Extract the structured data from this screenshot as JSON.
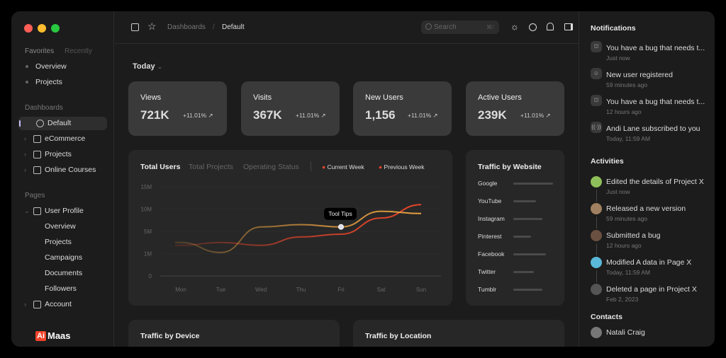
{
  "window": {
    "controls": [
      "#ff5f57",
      "#febc2e",
      "#28c840"
    ]
  },
  "sidebar": {
    "tabs": {
      "favorites": "Favorites",
      "recently": "Recently"
    },
    "favorites": [
      {
        "label": "Overview"
      },
      {
        "label": "Projects"
      }
    ],
    "dashboards_title": "Dashboards",
    "dashboards": [
      {
        "label": "Default",
        "icon": "pie-chart-icon",
        "active": true
      },
      {
        "label": "eCommerce",
        "icon": "shopping-bag-icon"
      },
      {
        "label": "Projects",
        "icon": "folder-icon"
      },
      {
        "label": "Online Courses",
        "icon": "book-icon"
      }
    ],
    "pages_title": "Pages",
    "user_profile": {
      "label": "User Profile",
      "children": [
        "Overview",
        "Projects",
        "Campaigns",
        "Documents",
        "Followers"
      ]
    },
    "account": "Account",
    "logo": {
      "mark": "Ai",
      "text": "Maas",
      "color": "#f0432a"
    }
  },
  "topbar": {
    "breadcrumb": [
      "Dashboards",
      "Default"
    ],
    "search_placeholder": "Search",
    "search_shortcut": "⌘/",
    "icons": [
      "sun-icon",
      "history-icon",
      "bell-icon",
      "panel-icon"
    ]
  },
  "filter": {
    "label": "Today"
  },
  "stats": [
    {
      "title": "Views",
      "value": "721K",
      "change": "+11.01%"
    },
    {
      "title": "Visits",
      "value": "367K",
      "change": "+11.01%"
    },
    {
      "title": "New Users",
      "value": "1,156",
      "change": "+11.01%"
    },
    {
      "title": "Active Users",
      "value": "239K",
      "change": "+11.01%"
    }
  ],
  "chart_data": {
    "type": "line",
    "tabs": [
      "Total Users",
      "Total Projects",
      "Operating Status"
    ],
    "active_tab": "Total Users",
    "categories": [
      "Mon",
      "Tue",
      "Wed",
      "Thu",
      "Fri",
      "Sat",
      "Sun"
    ],
    "y_ticks": [
      "15M",
      "10M",
      "5M",
      "1M",
      "0"
    ],
    "y_tick_values": [
      15,
      10,
      5,
      1,
      0
    ],
    "series": [
      {
        "name": "Current Week",
        "color": "#e8a040",
        "values": [
          3,
          1.2,
          6,
          6.5,
          6,
          9.5,
          9
        ]
      },
      {
        "name": "Previous Week",
        "color": "#e8452a",
        "values": [
          2.5,
          3,
          2.5,
          4,
          4.5,
          8,
          11
        ]
      }
    ],
    "tooltip": {
      "label": "Tool Tips",
      "category": "Fri",
      "series": "Current Week"
    },
    "grid": true
  },
  "traffic_website": {
    "title": "Traffic by Website",
    "items": [
      {
        "label": "Google",
        "share": 1.0
      },
      {
        "label": "YouTube",
        "share": 0.57
      },
      {
        "label": "Instagram",
        "share": 0.74
      },
      {
        "label": "Pinterest",
        "share": 0.44
      },
      {
        "label": "Facebook",
        "share": 0.82
      },
      {
        "label": "Twitter",
        "share": 0.51
      },
      {
        "label": "Tumblr",
        "share": 0.73
      }
    ]
  },
  "bottom_panels": [
    "Traffic by Device",
    "Traffic by Location"
  ],
  "notifications": {
    "title": "Notifications",
    "items": [
      {
        "text": "You have a bug that needs t...",
        "time": "Just now",
        "icon": "bug-icon"
      },
      {
        "text": "New user registered",
        "time": "59 minutes ago",
        "icon": "user-icon"
      },
      {
        "text": "You have a bug that needs t...",
        "time": "12 hours ago",
        "icon": "bug-icon"
      },
      {
        "text": "Andi Lane subscribed to you",
        "time": "Today, 11:59 AM",
        "icon": "broadcast-icon"
      }
    ]
  },
  "activities": {
    "title": "Activities",
    "items": [
      {
        "text": "Edited the details of Project X",
        "time": "Just now",
        "color": "#8fbf5a"
      },
      {
        "text": "Released a new version",
        "time": "59 minutes ago",
        "color": "#a08060"
      },
      {
        "text": "Submitted a bug",
        "time": "12 hours ago",
        "color": "#6a5040"
      },
      {
        "text": "Modified A data in Page X",
        "time": "Today, 11:59 AM",
        "color": "#5ab8d8"
      },
      {
        "text": "Deleted a page in Project X",
        "time": "Feb 2, 2023",
        "color": "#555"
      }
    ]
  },
  "contacts": {
    "title": "Contacts",
    "items": [
      {
        "name": "Natali Craig"
      }
    ]
  }
}
